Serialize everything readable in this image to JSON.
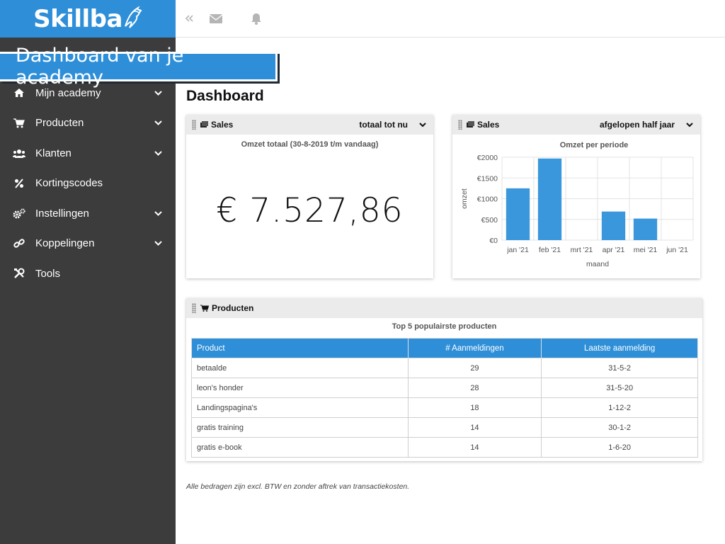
{
  "app": {
    "logo": "Skillba",
    "banner": "Dashboard van je academy"
  },
  "sidebar": {
    "items": [
      {
        "label": "Mijn academy",
        "icon": "home-icon",
        "has_children": true
      },
      {
        "label": "Producten",
        "icon": "cart-icon",
        "has_children": true
      },
      {
        "label": "Klanten",
        "icon": "users-icon",
        "has_children": true
      },
      {
        "label": "Kortingscodes",
        "icon": "percent-icon",
        "has_children": false
      },
      {
        "label": "Instellingen",
        "icon": "gears-icon",
        "has_children": true
      },
      {
        "label": "Koppelingen",
        "icon": "link-icon",
        "has_children": true
      },
      {
        "label": "Tools",
        "icon": "tools-icon",
        "has_children": false
      }
    ]
  },
  "topbar": {
    "icons": [
      "collapse-icon",
      "mail-icon",
      "bell-icon"
    ]
  },
  "page": {
    "title": "Dashboard",
    "footnote": "Alle bedragen zijn excl. BTW en zonder aftrek van transactiekosten."
  },
  "sales_total": {
    "title": "Sales",
    "period": "totaal tot nu",
    "subtitle": "Omzet totaal (30-8-2019 t/m vandaag)",
    "value": "€ 7.527,86"
  },
  "sales_period": {
    "title": "Sales",
    "period": "afgelopen half jaar"
  },
  "chart_data": {
    "type": "bar",
    "title": "Omzet per periode",
    "xlabel": "maand",
    "ylabel": "omzet",
    "categories": [
      "jan '21",
      "feb '21",
      "mrt '21",
      "apr '21",
      "mei '21",
      "jun '21"
    ],
    "values": [
      1250,
      1970,
      0,
      690,
      520,
      0
    ],
    "ylim": [
      0,
      2000
    ],
    "yticks": [
      "€0",
      "€500",
      "€1000",
      "€1500",
      "€2000"
    ],
    "grid": true,
    "color": "#3a97dc"
  },
  "products": {
    "title": "Producten",
    "subtitle": "Top 5 populairste producten",
    "columns": [
      "Product",
      "# Aanmeldingen",
      "Laatste aanmelding"
    ],
    "rows": [
      [
        "betaalde",
        "29",
        "31-5-2"
      ],
      [
        "leon's honder",
        "28",
        "31-5-20"
      ],
      [
        "Landingspagina's",
        "18",
        "1-12-2"
      ],
      [
        "gratis training",
        "14",
        "30-1-2"
      ],
      [
        "gratis e-book",
        "14",
        "1-6-20"
      ]
    ]
  },
  "colors": {
    "accent": "#2e8fd8",
    "sidebar": "#3c3c3c"
  }
}
